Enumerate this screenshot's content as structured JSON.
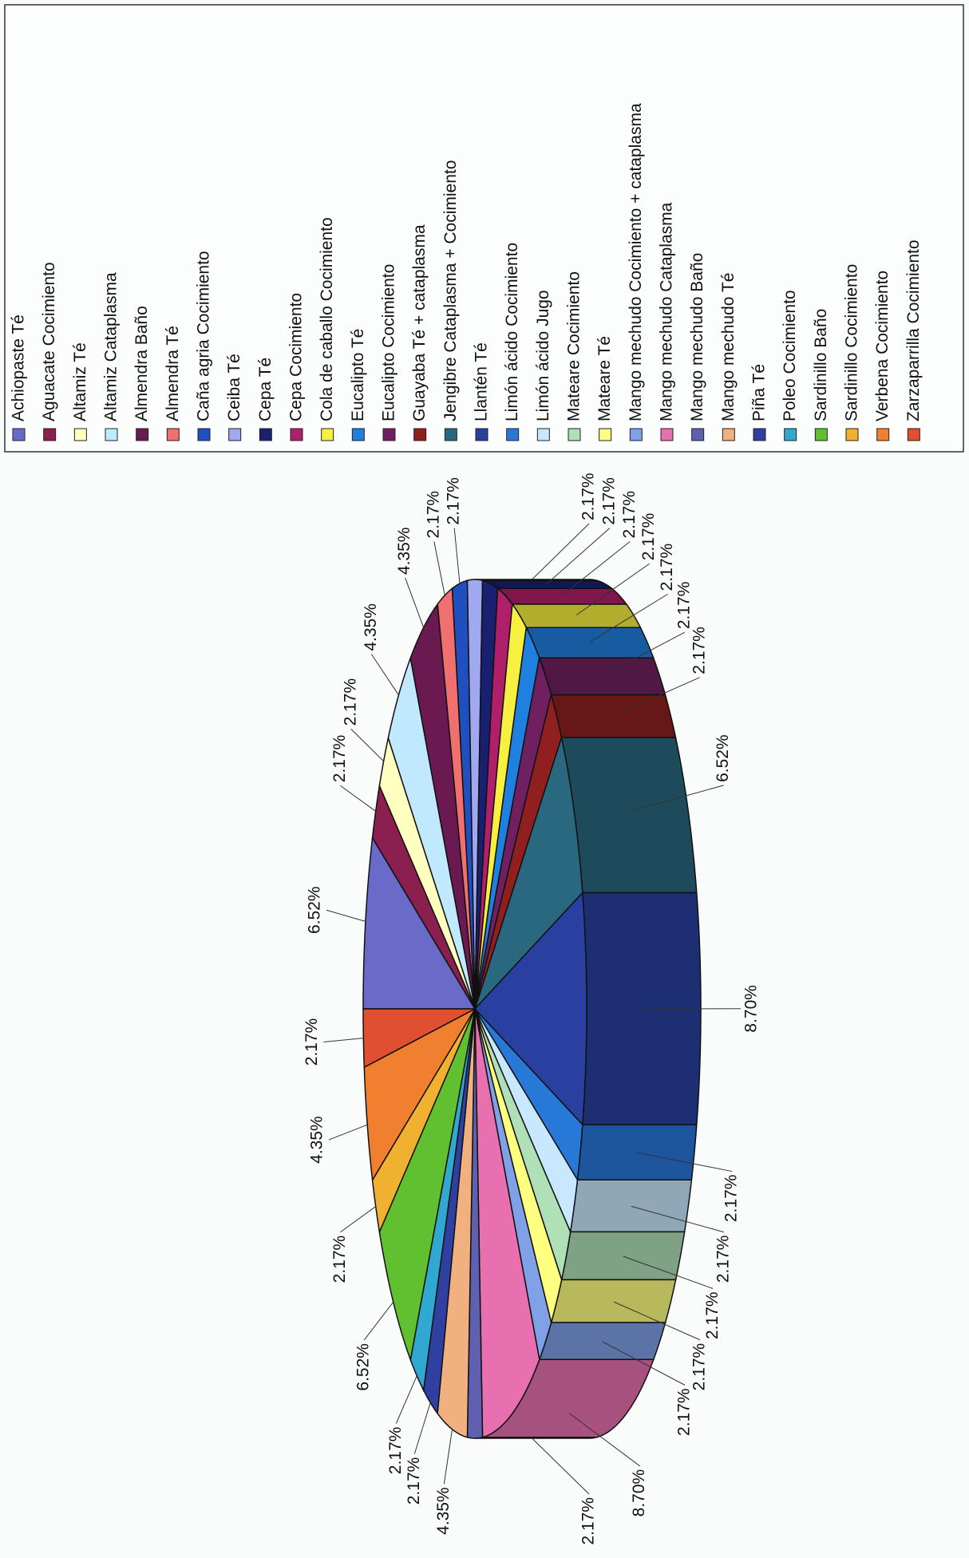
{
  "chart_data": {
    "type": "pie",
    "categories": [
      "Achiopaste Té",
      "Aguacate Cocimiento",
      "Altamiz Té",
      "Altamiz Cataplasma",
      "Almendra Baño",
      "Almendra Té",
      "Caña agria Cocimiento",
      "Ceiba Té",
      "Cepa Té",
      "Cepa Cocimiento",
      "Cola de caballo Cocimiento",
      "Eucalipto Té",
      "Eucalipto Cocimiento",
      "Guayaba Té + cataplasma",
      "Jengibre Cataplasma + Cocimiento",
      "Llantén Té",
      "Limón ácido Cocimiento",
      "Limón ácido Jugo",
      "Mateare Cocimiento",
      "Mateare Té",
      "Mango mechudo Cocimiento + cataplasma",
      "Mango mechudo Cataplasma",
      "Mango mechudo Baño",
      "Mango mechudo Té",
      "Piña Té",
      "Poleo Cocimiento",
      "Sardinillo Baño",
      "Sardinillo Cocimiento",
      "Verbena Cocimiento",
      "Zarzaparrilla Cocimiento"
    ],
    "values": [
      6.52,
      2.17,
      2.17,
      4.35,
      4.35,
      2.17,
      2.17,
      2.17,
      2.17,
      2.17,
      2.17,
      2.17,
      2.17,
      2.17,
      6.52,
      8.7,
      2.17,
      2.17,
      2.17,
      2.17,
      2.17,
      8.7,
      2.17,
      4.35,
      2.17,
      2.17,
      6.52,
      2.17,
      4.35,
      2.17
    ],
    "value_labels": [
      "6.52%",
      "2.17%",
      "2.17%",
      "4.35%",
      "4.35%",
      "2.17%",
      "2.17%",
      "2.17%",
      "2.17%",
      "2.17%",
      "2.17%",
      "2.17%",
      "2.17%",
      "2.17%",
      "6.52%",
      "8.70%",
      "2.17%",
      "2.17%",
      "2.17%",
      "2.17%",
      "2.17%",
      "8.70%",
      "2.17%",
      "4.35%",
      "2.17%",
      "2.17%",
      "6.52%",
      "2.17%",
      "4.35%",
      "2.17%"
    ],
    "colors": [
      "#6a6ac8",
      "#8b2050",
      "#ffffc0",
      "#c0e8ff",
      "#6a1a50",
      "#f07070",
      "#2050c0",
      "#a0a8f0",
      "#1a2070",
      "#b0206a",
      "#f8f040",
      "#2080e0",
      "#702060",
      "#902020",
      "#2a6880",
      "#2a40a0",
      "#2878d8",
      "#c8e8ff",
      "#b0e0b8",
      "#ffff80",
      "#80a0e8",
      "#e870b0",
      "#6060b0",
      "#f0b080",
      "#3040a0",
      "#30a8d0",
      "#60c030",
      "#f0b030",
      "#f08030",
      "#e05030"
    ],
    "legend": "right"
  }
}
